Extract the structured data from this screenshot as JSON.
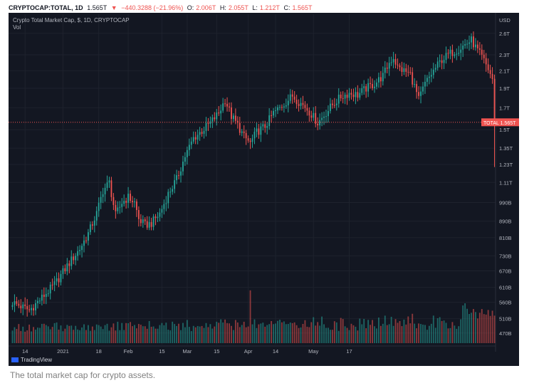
{
  "header": {
    "symbol": "CRYPTOCAP:TOTAL, 1D",
    "last": "1.565T",
    "change_arrow": "▼",
    "change": "−440.3288 (−21.96%)",
    "o_label": "O:",
    "o_value": "2.006T",
    "h_label": "H:",
    "h_value": "2.055T",
    "l_label": "L:",
    "l_value": "1.212T",
    "c_label": "C:",
    "c_value": "1.565T"
  },
  "legend": {
    "title": "Crypto Total Market Cap, $, 1D, CRYPTOCAP",
    "vol": "Vol"
  },
  "brand": {
    "name": "TradingView"
  },
  "caption": "The total market cap for crypto assets.",
  "colors": {
    "up": "#26a69a",
    "down": "#ef5350",
    "background": "#131722",
    "grid": "#1e222d",
    "text": "#b2b5be"
  },
  "chart_data": {
    "type": "candlestick",
    "x_ticks": [
      "14",
      "2021",
      "18",
      "Feb",
      "15",
      "Mar",
      "15",
      "Apr",
      "14",
      "May",
      "17"
    ],
    "y_unit": "USD",
    "y_ticks": [
      "2.6T",
      "2.3T",
      "2.1T",
      "1.9T",
      "1.7T",
      "1.5T",
      "1.35T",
      "1.23T",
      "1.11T",
      "990B",
      "890B",
      "810B",
      "730B",
      "670B",
      "610B",
      "560B",
      "510B",
      "470B"
    ],
    "y_scale": "log",
    "y_range": [
      440,
      2900
    ],
    "last_price_label": {
      "name": "TOTAL",
      "value": "1.565T"
    },
    "anchors": [
      [
        0,
        560
      ],
      [
        8,
        535
      ],
      [
        14,
        575
      ],
      [
        20,
        620
      ],
      [
        26,
        690
      ],
      [
        32,
        760
      ],
      [
        36,
        830
      ],
      [
        40,
        930
      ],
      [
        43,
        1060
      ],
      [
        46,
        1110
      ],
      [
        49,
        920
      ],
      [
        52,
        990
      ],
      [
        55,
        1020
      ],
      [
        58,
        990
      ],
      [
        60,
        900
      ],
      [
        63,
        870
      ],
      [
        66,
        880
      ],
      [
        70,
        930
      ],
      [
        74,
        1040
      ],
      [
        78,
        1130
      ],
      [
        82,
        1290
      ],
      [
        86,
        1430
      ],
      [
        90,
        1490
      ],
      [
        94,
        1560
      ],
      [
        98,
        1650
      ],
      [
        101,
        1780
      ],
      [
        104,
        1620
      ],
      [
        107,
        1540
      ],
      [
        110,
        1440
      ],
      [
        113,
        1390
      ],
      [
        116,
        1480
      ],
      [
        120,
        1530
      ],
      [
        124,
        1650
      ],
      [
        127,
        1700
      ],
      [
        130,
        1760
      ],
      [
        133,
        1820
      ],
      [
        136,
        1760
      ],
      [
        139,
        1710
      ],
      [
        142,
        1640
      ],
      [
        145,
        1560
      ],
      [
        148,
        1630
      ],
      [
        152,
        1730
      ],
      [
        156,
        1810
      ],
      [
        160,
        1850
      ],
      [
        164,
        1830
      ],
      [
        168,
        1900
      ],
      [
        172,
        1950
      ],
      [
        176,
        2040
      ],
      [
        179,
        2200
      ],
      [
        181,
        2270
      ],
      [
        183,
        2140
      ],
      [
        186,
        2100
      ],
      [
        189,
        2060
      ],
      [
        191,
        1920
      ],
      [
        193,
        1780
      ],
      [
        196,
        1950
      ],
      [
        200,
        2100
      ],
      [
        204,
        2240
      ],
      [
        208,
        2320
      ],
      [
        212,
        2380
      ],
      [
        216,
        2460
      ],
      [
        218,
        2500
      ],
      [
        220,
        2400
      ],
      [
        223,
        2270
      ],
      [
        226,
        2120
      ],
      [
        228,
        2005
      ],
      [
        229,
        1565
      ]
    ],
    "last_candle": {
      "open": 2006,
      "high": 2055,
      "low": 1212,
      "close": 1565
    },
    "volume_spikes": [
      [
        113,
        0.42
      ],
      [
        190,
        0.27
      ],
      [
        214,
        0.29
      ],
      [
        215,
        0.31
      ]
    ]
  }
}
